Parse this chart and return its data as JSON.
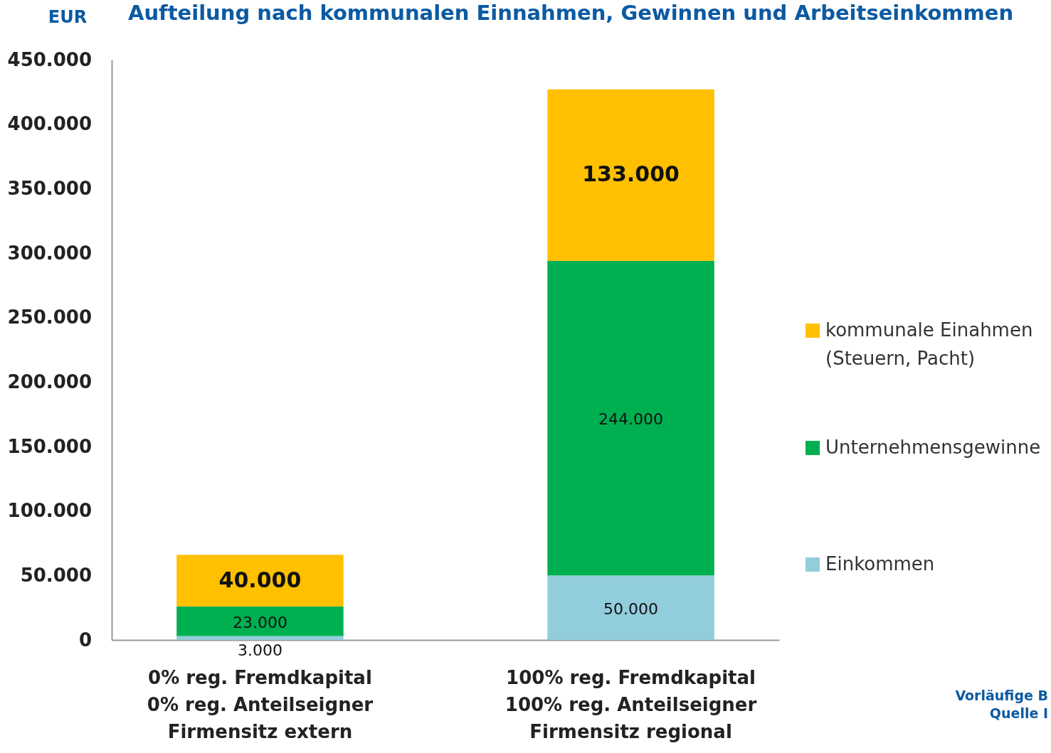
{
  "chart_data": {
    "type": "bar",
    "stacked": true,
    "title": "Aufteilung nach kommunalen Einnahmen, Gewinnen und Arbeitseinkommen",
    "ylabel": "EUR",
    "categories": [
      "0% reg. Fremdkapital\n0% reg. Anteilseigner\nFirmensitz extern",
      "100% reg. Fremdkapital\n100% reg. Anteilseigner\nFirmensitz regional"
    ],
    "series": [
      {
        "name": "Einkommen",
        "color": "#92cddc",
        "values": [
          3000,
          50000
        ],
        "value_labels": [
          "3.000",
          "50.000"
        ]
      },
      {
        "name": "Unternehmensgewinne",
        "color": "#00b050",
        "values": [
          23000,
          244000
        ],
        "value_labels": [
          "23.000",
          "244.000"
        ]
      },
      {
        "name": "kommunale Einahmen (Steuern, Pacht)",
        "color": "#ffc000",
        "values": [
          40000,
          133000
        ],
        "value_labels": [
          "40.000",
          "133.000"
        ]
      }
    ],
    "ylim": [
      0,
      450000
    ],
    "yticks": [
      {
        "value": 0,
        "label": "0"
      },
      {
        "value": 50000,
        "label": "50.000"
      },
      {
        "value": 100000,
        "label": "100.000"
      },
      {
        "value": 150000,
        "label": "150.000"
      },
      {
        "value": 200000,
        "label": "200.000"
      },
      {
        "value": 250000,
        "label": "250.000"
      },
      {
        "value": 300000,
        "label": "300.000"
      },
      {
        "value": 350000,
        "label": "350.000"
      },
      {
        "value": 400000,
        "label": "400.000"
      },
      {
        "value": 450000,
        "label": "450.000"
      }
    ],
    "grid": false,
    "legend": "right",
    "annotations": [
      "Vorläufige B",
      "Quelle I"
    ]
  }
}
